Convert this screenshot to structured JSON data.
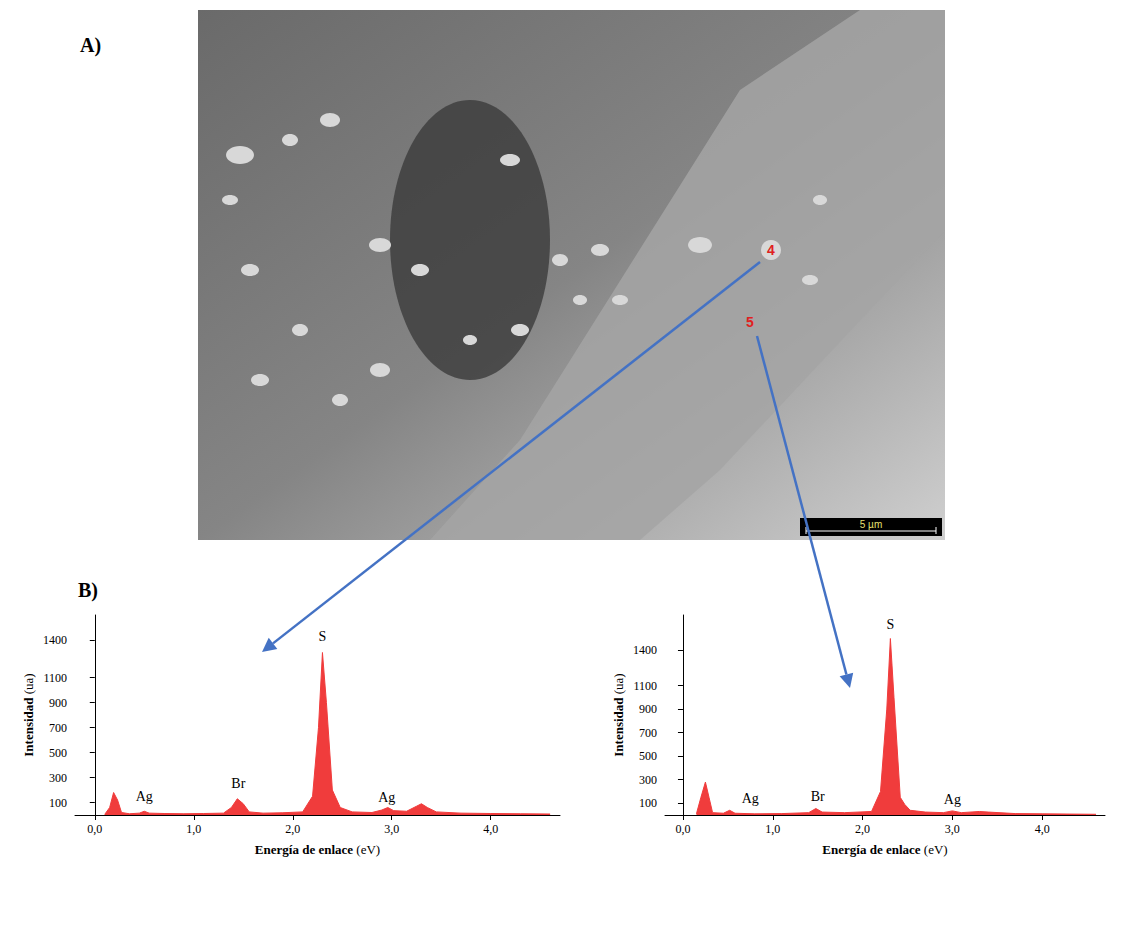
{
  "panels": {
    "a": {
      "label": "A)",
      "markers": [
        "4",
        "5"
      ],
      "scale_bar": "5 µm"
    },
    "b": {
      "label": "B)"
    }
  },
  "chart_data": [
    {
      "type": "area",
      "color": "#f03c3c",
      "xlabel": "Energía de enlace (eV)",
      "ylabel": "Intensidad (ua)",
      "x": [
        0.1,
        0.15,
        0.19,
        0.23,
        0.27,
        0.35,
        0.45,
        0.5,
        0.55,
        0.7,
        0.9,
        1.1,
        1.3,
        1.38,
        1.44,
        1.5,
        1.56,
        1.7,
        1.9,
        2.1,
        2.2,
        2.26,
        2.3,
        2.34,
        2.4,
        2.48,
        2.6,
        2.8,
        2.9,
        2.96,
        3.02,
        3.15,
        3.25,
        3.3,
        3.36,
        3.45,
        3.7,
        4.0,
        4.3,
        4.6
      ],
      "values": [
        5,
        60,
        180,
        120,
        20,
        10,
        15,
        30,
        15,
        12,
        10,
        12,
        15,
        60,
        130,
        90,
        25,
        15,
        18,
        25,
        150,
        700,
        1300,
        900,
        200,
        60,
        25,
        20,
        40,
        60,
        35,
        30,
        70,
        90,
        60,
        25,
        15,
        12,
        10,
        8
      ],
      "xlim": [
        -0.2,
        4.7
      ],
      "xticks": [
        {
          "value": 0,
          "label": "0,0"
        },
        {
          "value": 1,
          "label": "1,0"
        },
        {
          "value": 2,
          "label": "2,0"
        },
        {
          "value": 3,
          "label": "3,0"
        },
        {
          "value": 4,
          "label": "4,0"
        }
      ],
      "ylim": [
        0,
        1600
      ],
      "yticks": [
        100,
        300,
        500,
        700,
        900,
        1100,
        1400
      ],
      "grid": false,
      "annotations": [
        {
          "text": "Ag",
          "x": 0.5,
          "y": 150
        },
        {
          "text": "Br",
          "x": 1.45,
          "y": 250
        },
        {
          "text": "S",
          "x": 2.3,
          "y": 1430
        },
        {
          "text": "Ag",
          "x": 2.95,
          "y": 140
        }
      ]
    },
    {
      "type": "area",
      "color": "#f03c3c",
      "xlabel": "Energía de enlace (eV)",
      "ylabel": "Intensidad (ua)",
      "x": [
        0.15,
        0.2,
        0.25,
        0.29,
        0.33,
        0.45,
        0.52,
        0.58,
        0.8,
        1.1,
        1.4,
        1.48,
        1.55,
        1.8,
        2.1,
        2.2,
        2.27,
        2.31,
        2.35,
        2.42,
        2.47,
        2.53,
        2.7,
        2.9,
        3.0,
        3.1,
        3.3,
        3.4,
        3.7,
        4.0,
        4.3,
        4.6
      ],
      "values": [
        10,
        150,
        280,
        150,
        20,
        15,
        40,
        15,
        10,
        12,
        20,
        55,
        25,
        20,
        30,
        200,
        900,
        1500,
        1000,
        150,
        90,
        40,
        25,
        20,
        35,
        20,
        30,
        25,
        12,
        10,
        8,
        6
      ],
      "xlim": [
        -0.2,
        4.7
      ],
      "xticks": [
        {
          "value": 0,
          "label": "0,0"
        },
        {
          "value": 1,
          "label": "1,0"
        },
        {
          "value": 2,
          "label": "2,0"
        },
        {
          "value": 3,
          "label": "3,0"
        },
        {
          "value": 4,
          "label": "4,0"
        }
      ],
      "ylim": [
        0,
        1700
      ],
      "yticks": [
        100,
        300,
        500,
        700,
        900,
        1100,
        1400
      ],
      "grid": false,
      "annotations": [
        {
          "text": "Ag",
          "x": 0.75,
          "y": 140
        },
        {
          "text": "Br",
          "x": 1.5,
          "y": 160
        },
        {
          "text": "S",
          "x": 2.31,
          "y": 1620
        },
        {
          "text": "Ag",
          "x": 3.0,
          "y": 130
        }
      ]
    }
  ]
}
